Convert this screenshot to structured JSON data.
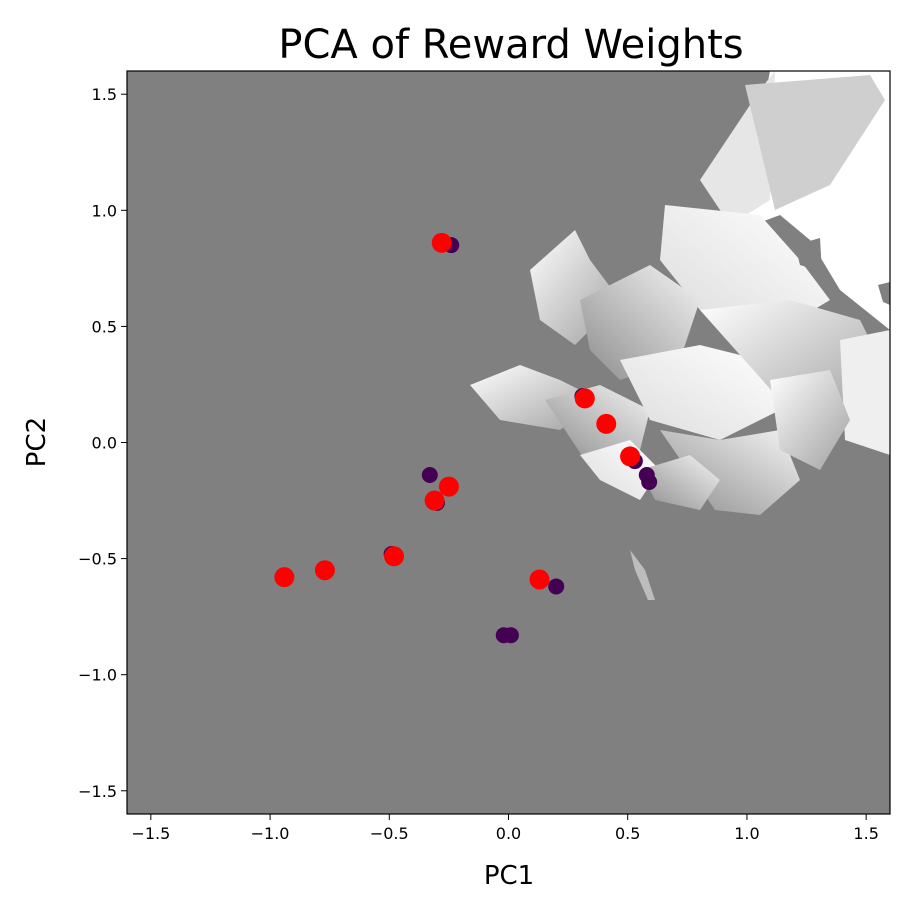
{
  "chart_data": {
    "type": "scatter",
    "title": "PCA of Reward Weights",
    "xlabel": "PC1",
    "ylabel": "PC2",
    "xlim": [
      -1.6,
      1.6
    ],
    "ylim": [
      -1.6,
      1.6
    ],
    "xticks": [
      -1.5,
      -1.0,
      -0.5,
      0.0,
      0.5,
      1.0,
      1.5
    ],
    "yticks": [
      -1.5,
      -1.0,
      -0.5,
      0.0,
      0.5,
      1.0,
      1.5
    ],
    "xtick_labels": [
      "−1.5",
      "−1.0",
      "−0.5",
      "0.0",
      "0.5",
      "1.0",
      "1.5"
    ],
    "ytick_labels": [
      "−1.5",
      "−1.0",
      "−0.5",
      "0.0",
      "0.5",
      "1.0",
      "1.5"
    ],
    "grid": false,
    "background": {
      "type": "heatmap",
      "base_color": "#808080",
      "highlight_color": "#ffffff",
      "highlight_region": "upper-right"
    },
    "series": [
      {
        "color": "#440154",
        "points": [
          {
            "x": -0.24,
            "y": 0.85
          },
          {
            "x": 0.31,
            "y": 0.2
          },
          {
            "x": 0.53,
            "y": -0.08
          },
          {
            "x": 0.58,
            "y": -0.14
          },
          {
            "x": 0.59,
            "y": -0.17
          },
          {
            "x": -0.33,
            "y": -0.14
          },
          {
            "x": -0.3,
            "y": -0.26
          },
          {
            "x": -0.49,
            "y": -0.48
          },
          {
            "x": 0.2,
            "y": -0.62
          },
          {
            "x": -0.02,
            "y": -0.83
          },
          {
            "x": 0.01,
            "y": -0.83
          }
        ]
      },
      {
        "color": "#ff0000",
        "points": [
          {
            "x": -0.28,
            "y": 0.86
          },
          {
            "x": 0.32,
            "y": 0.19
          },
          {
            "x": 0.41,
            "y": 0.08
          },
          {
            "x": 0.51,
            "y": -0.06
          },
          {
            "x": -0.25,
            "y": -0.19
          },
          {
            "x": -0.31,
            "y": -0.25
          },
          {
            "x": -0.48,
            "y": -0.49
          },
          {
            "x": -0.77,
            "y": -0.55
          },
          {
            "x": -0.94,
            "y": -0.58
          },
          {
            "x": 0.13,
            "y": -0.59
          }
        ]
      }
    ]
  }
}
